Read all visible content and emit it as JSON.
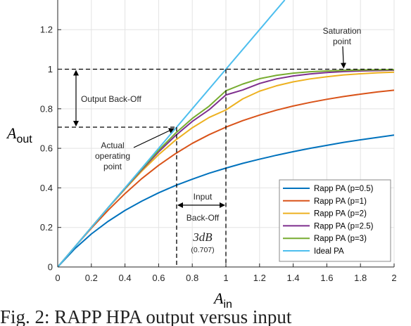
{
  "chart_data": {
    "type": "line",
    "xlabel_main": "A",
    "xlabel_sub": "in",
    "ylabel_main": "A",
    "ylabel_sub": "out",
    "xlim": [
      0,
      2
    ],
    "ylim": [
      0,
      1.35
    ],
    "xticks": [
      0,
      0.2,
      0.4,
      0.6,
      0.8,
      1,
      1.2,
      1.4,
      1.6,
      1.8,
      2
    ],
    "xtick_labels": [
      "0",
      "0.2",
      "0.4",
      "0.6",
      "0.8",
      "1",
      "1.2",
      "1.4",
      "1.6",
      "1.8",
      "2"
    ],
    "yticks": [
      0,
      0.2,
      0.4,
      0.6,
      0.8,
      1,
      1.2
    ],
    "ytick_labels": [
      "0",
      "0.2",
      "0.4",
      "0.6",
      "0.8",
      "1",
      "1.2"
    ],
    "grid": true,
    "legend_position": "bottom-right",
    "x": [
      0,
      0.1,
      0.2,
      0.3,
      0.4,
      0.5,
      0.6,
      0.7,
      0.8,
      0.9,
      1.0,
      1.1,
      1.2,
      1.3,
      1.4,
      1.5,
      1.6,
      1.7,
      1.8,
      1.9,
      2.0
    ],
    "series": [
      {
        "name": "Rapp PA (p=0.5)",
        "color": "#0072BD",
        "y": [
          0,
          0.091,
          0.167,
          0.231,
          0.286,
          0.333,
          0.375,
          0.412,
          0.444,
          0.474,
          0.5,
          0.524,
          0.545,
          0.565,
          0.583,
          0.6,
          0.615,
          0.63,
          0.643,
          0.655,
          0.667
        ]
      },
      {
        "name": "Rapp PA (p=1)",
        "color": "#D95319",
        "y": [
          0,
          0.1,
          0.196,
          0.287,
          0.371,
          0.447,
          0.514,
          0.573,
          0.625,
          0.669,
          0.707,
          0.74,
          0.768,
          0.793,
          0.814,
          0.832,
          0.848,
          0.862,
          0.874,
          0.885,
          0.894
        ]
      },
      {
        "name": "Rapp PA (p=2)",
        "color": "#EDB120",
        "y": [
          0,
          0.1,
          0.2,
          0.299,
          0.394,
          0.485,
          0.568,
          0.641,
          0.704,
          0.756,
          0.794,
          0.85,
          0.889,
          0.916,
          0.936,
          0.951,
          0.962,
          0.971,
          0.977,
          0.982,
          0.985
        ]
      },
      {
        "name": "Rapp PA (p=2.5)",
        "color": "#7E2F8E",
        "y": [
          0,
          0.1,
          0.2,
          0.3,
          0.397,
          0.492,
          0.582,
          0.664,
          0.736,
          0.795,
          0.87,
          0.895,
          0.928,
          0.951,
          0.966,
          0.976,
          0.983,
          0.988,
          0.991,
          0.993,
          0.995
        ]
      },
      {
        "name": "Rapp PA (p=3)",
        "color": "#77AC30",
        "y": [
          0,
          0.1,
          0.2,
          0.3,
          0.399,
          0.496,
          0.59,
          0.676,
          0.751,
          0.813,
          0.891,
          0.925,
          0.952,
          0.969,
          0.98,
          0.987,
          0.991,
          0.994,
          0.996,
          0.997,
          0.998
        ]
      },
      {
        "name": "Ideal PA",
        "color": "#4DBEEE",
        "xy": [
          [
            0,
            0
          ],
          [
            1.35,
            1.35
          ]
        ]
      }
    ],
    "reference_lines": {
      "saturation_y": 1,
      "operating_y": 0.707,
      "operating_x": 0.707,
      "saturation_x": 1
    },
    "annotations": {
      "saturation": "Saturation\npoint",
      "output_backoff": "Output Back-Off",
      "operating_point": "Actual\noperating\npoint",
      "input_backoff": "Input\nBack-Off",
      "backoff_db": "3dB",
      "backoff_ratio": "(0.707)"
    }
  },
  "caption": "Fig. 2: RAPP HPA output versus input"
}
